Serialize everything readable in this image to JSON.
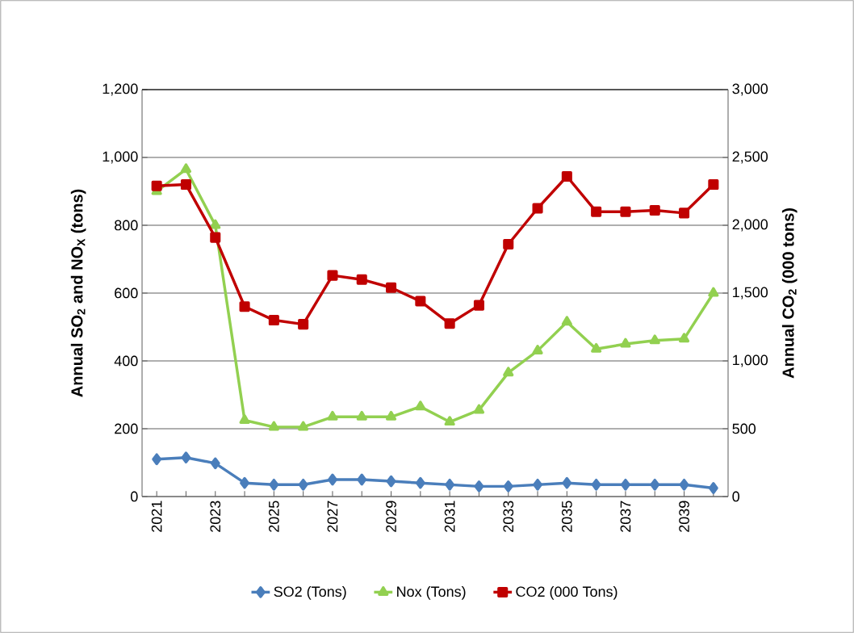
{
  "chart_data": {
    "type": "line",
    "categories": [
      "2021",
      null,
      "2023",
      null,
      "2025",
      null,
      "2027",
      null,
      "2029",
      null,
      "2031",
      null,
      "2033",
      null,
      "2035",
      null,
      "2037",
      null,
      "2039",
      null
    ],
    "ylabel": "Annual SO$_{2}$ and NO$_{X}$ (tons)",
    "y2label": "Annual CO$_{2}$ (000 tons)",
    "ylim": [
      0,
      1200
    ],
    "yticks": [
      0,
      200,
      400,
      600,
      800,
      {
        "value": 1000,
        "label": "1,000"
      },
      {
        "value": 1200,
        "label": "1,200"
      }
    ],
    "y2lim": [
      0,
      3000
    ],
    "y2ticks": [
      0,
      500,
      {
        "value": 1000,
        "label": "1,000"
      },
      {
        "value": 1500,
        "label": "1,500"
      },
      {
        "value": 2000,
        "label": "2,000"
      },
      {
        "value": 2500,
        "label": "2,500"
      },
      {
        "value": 3000,
        "label": "3,000"
      }
    ],
    "grid": "y",
    "legend": "bottom",
    "series": [
      {
        "name": "SO2 (Tons)",
        "color": "#4a7ebb",
        "marker": "diamond",
        "values": [
          110,
          115,
          98,
          40,
          35,
          35,
          50,
          50,
          45,
          40,
          35,
          30,
          30,
          35,
          40,
          35,
          35,
          35,
          35,
          25
        ]
      },
      {
        "name": "Nox (Tons)",
        "color": "#92d050",
        "marker": "triangle",
        "values": [
          900,
          965,
          800,
          225,
          205,
          205,
          235,
          235,
          235,
          265,
          220,
          255,
          365,
          430,
          515,
          435,
          450,
          460,
          465,
          600
        ]
      },
      {
        "name": "CO2 (000 Tons)",
        "color": "#c00000",
        "marker": "square",
        "axis": "y2",
        "values": [
          2290,
          2300,
          1910,
          1400,
          1300,
          1270,
          1630,
          1600,
          1540,
          1440,
          1275,
          1410,
          1860,
          2125,
          2360,
          2100,
          2100,
          2110,
          2090,
          2300
        ]
      }
    ]
  }
}
